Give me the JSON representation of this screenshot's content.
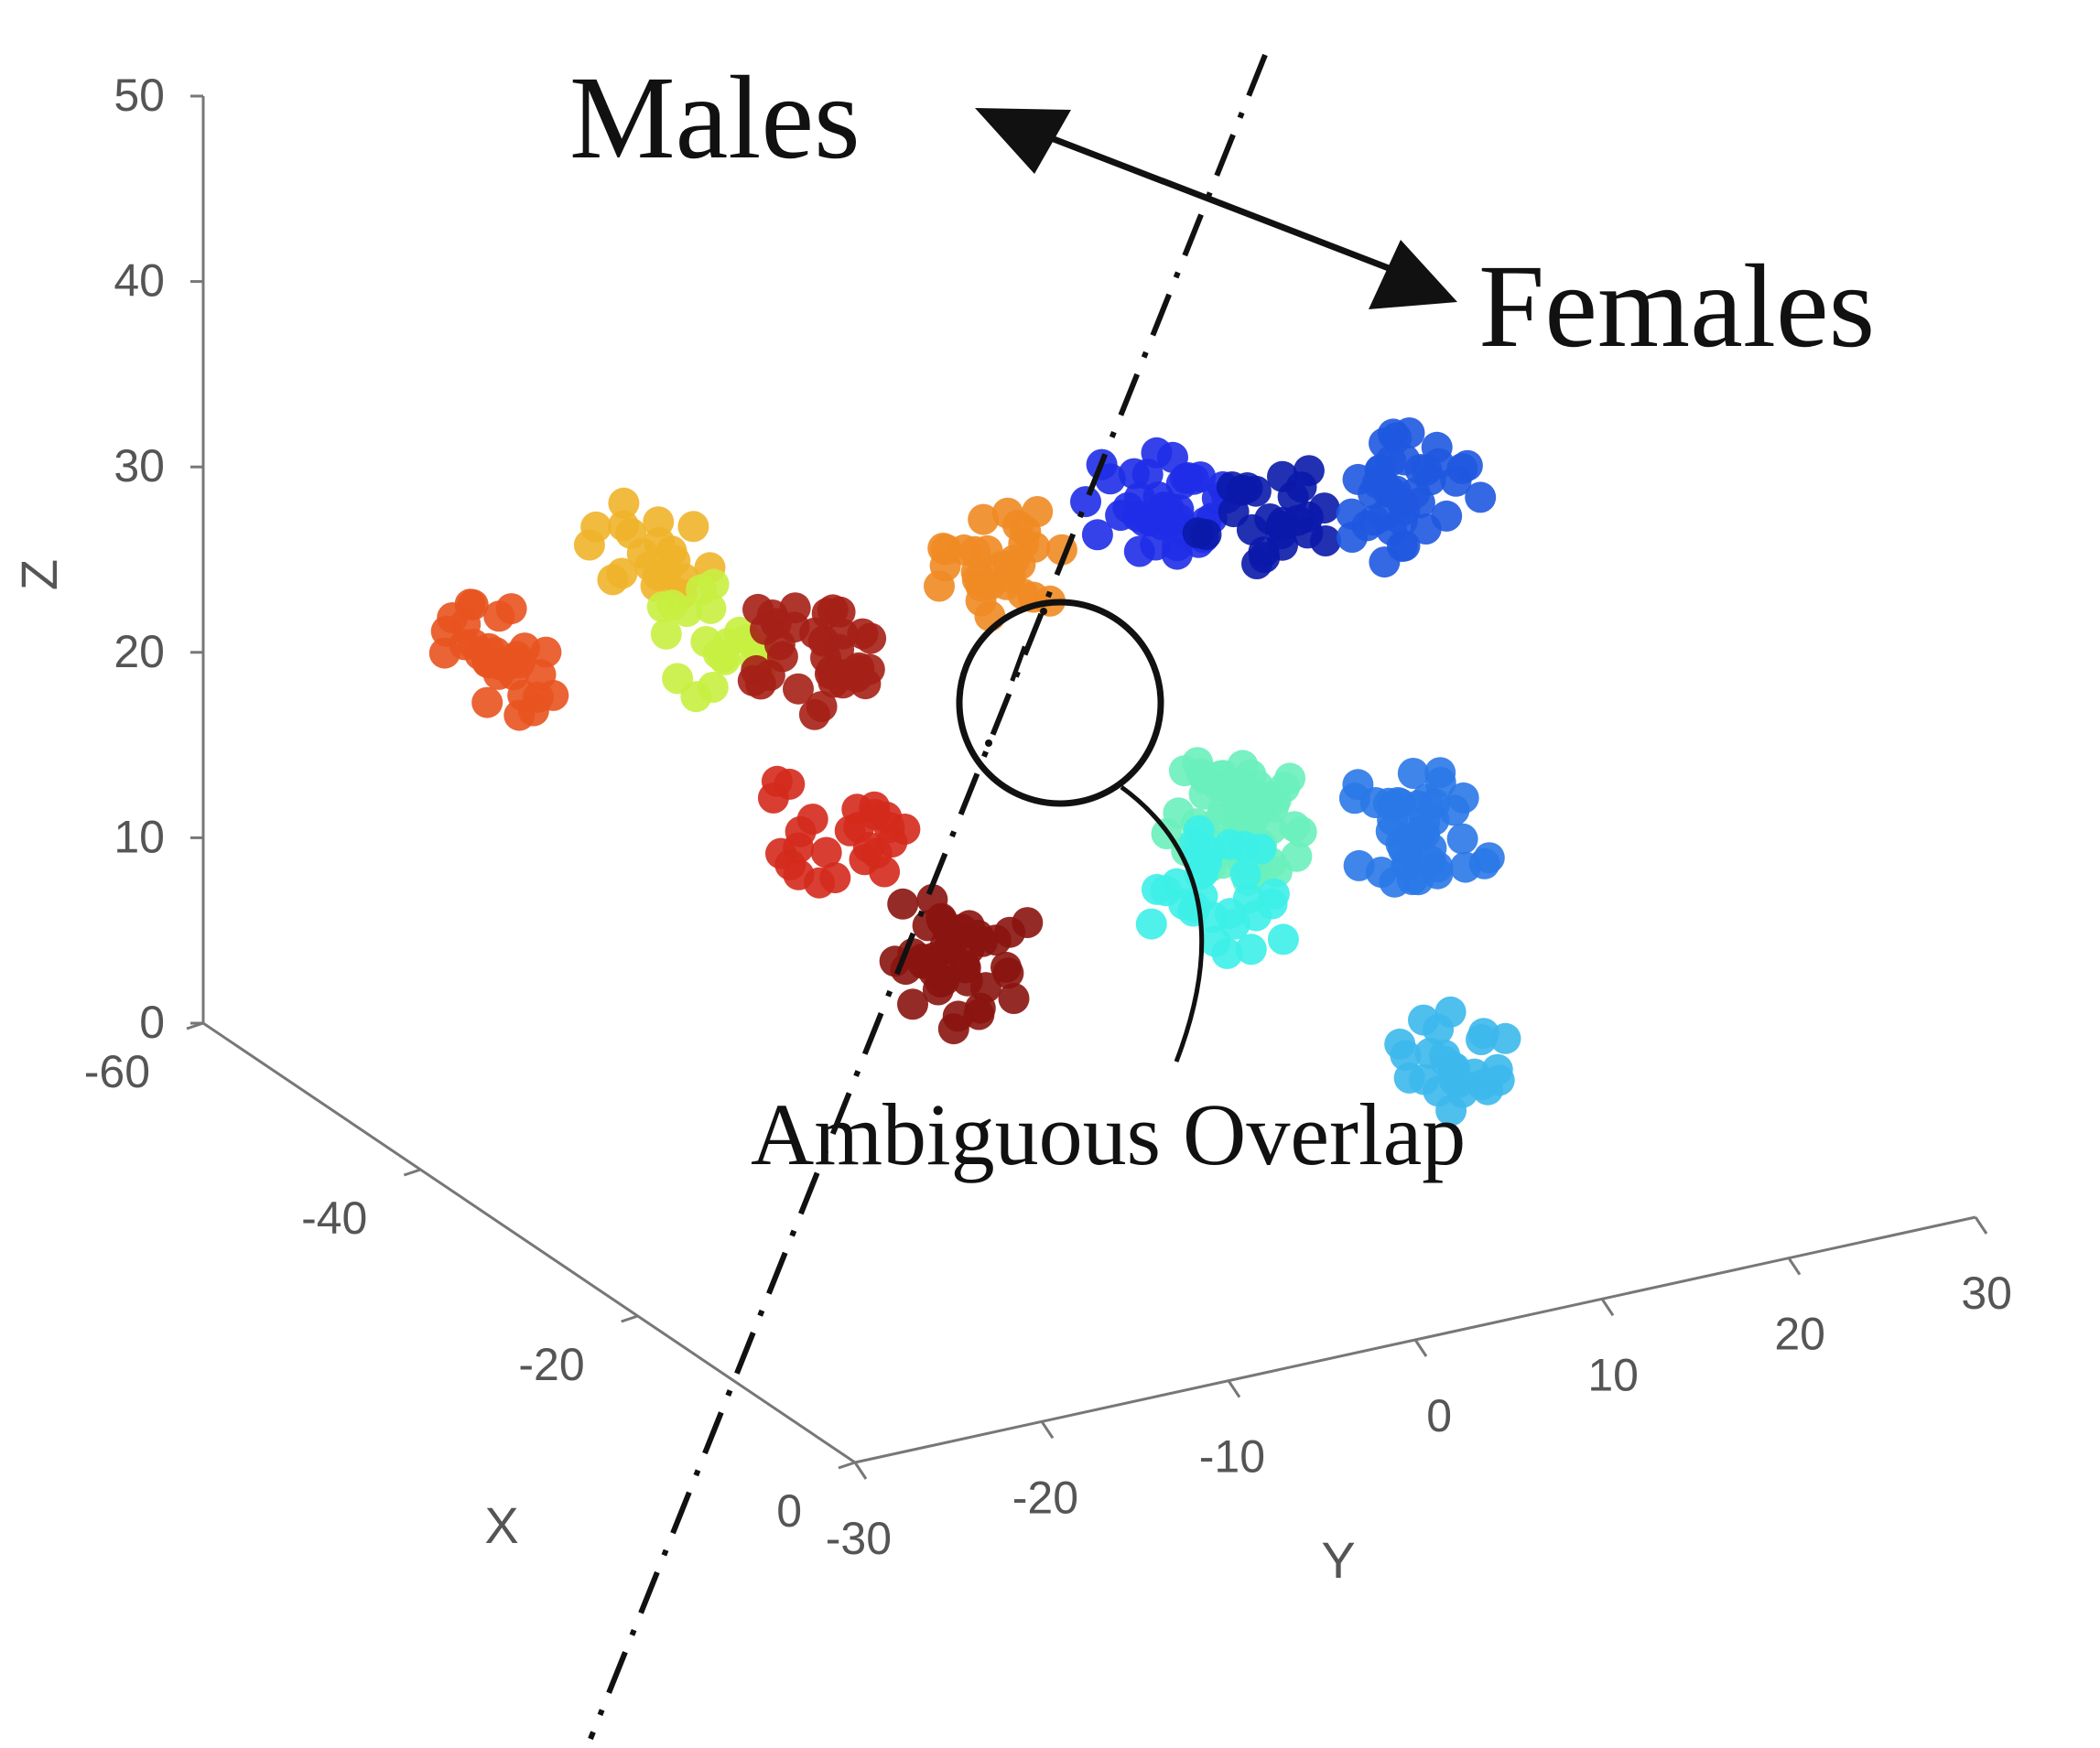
{
  "chart_data": {
    "type": "scatter",
    "title": "",
    "projection": "3d",
    "axes": {
      "x": {
        "label": "X",
        "range": [
          -60,
          0
        ],
        "ticks": [
          "-60",
          "-40",
          "-20",
          "0"
        ]
      },
      "y": {
        "label": "Y",
        "range": [
          -30,
          30
        ],
        "ticks": [
          "-30",
          "-20",
          "-10",
          "0",
          "10",
          "20",
          "30"
        ]
      },
      "z": {
        "label": "Z",
        "range": [
          0,
          50
        ],
        "ticks": [
          "0",
          "10",
          "20",
          "30",
          "40",
          "50"
        ]
      }
    },
    "grid": false,
    "legend": "none",
    "annotations": {
      "males": "Males",
      "females": "Females",
      "overlap": "Ambiguous Overlap"
    },
    "clusters": [
      {
        "color": "#e8531f",
        "center": [
          -45,
          -23,
          24.5
        ],
        "points": 30
      },
      {
        "color": "#f0b42a",
        "center": [
          -40,
          -18,
          30
        ],
        "points": 20
      },
      {
        "color": "#c8f040",
        "center": [
          -38,
          -15,
          26
        ],
        "points": 20
      },
      {
        "color": "#a52016",
        "center": [
          -35,
          -12,
          26
        ],
        "points": 35
      },
      {
        "color": "#d42a1c",
        "center": [
          -30,
          -13,
          18
        ],
        "points": 25
      },
      {
        "color": "#8a1410",
        "center": [
          -25,
          -10,
          13
        ],
        "points": 40
      },
      {
        "color": "#f08a24",
        "center": [
          -32,
          -4,
          30
        ],
        "points": 30
      },
      {
        "color": "#1f2ee8",
        "center": [
          -30,
          4,
          32
        ],
        "points": 40
      },
      {
        "color": "#0a1aaa",
        "center": [
          -30,
          10,
          31
        ],
        "points": 25
      },
      {
        "color": "#1f58e0",
        "center": [
          -30,
          17,
          30
        ],
        "points": 40
      },
      {
        "color": "#6af0bc",
        "center": [
          -20,
          2,
          20
        ],
        "points": 60
      },
      {
        "color": "#3cf0e8",
        "center": [
          -18,
          0,
          17
        ],
        "points": 30
      },
      {
        "color": "#2a78e8",
        "center": [
          -20,
          12,
          17
        ],
        "points": 40
      },
      {
        "color": "#3cb8ec",
        "center": [
          -12,
          9,
          8
        ],
        "points": 25
      }
    ]
  }
}
